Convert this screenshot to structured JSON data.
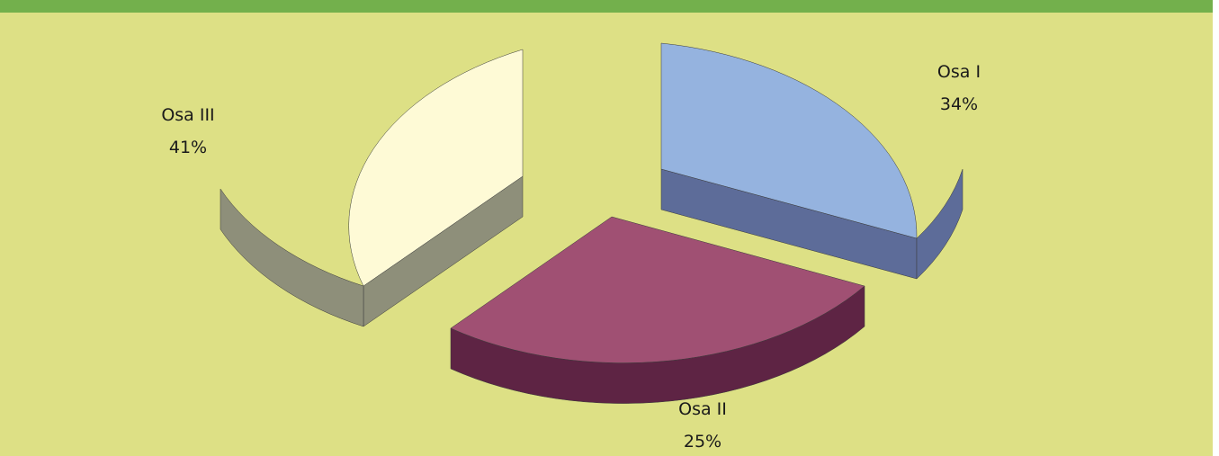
{
  "chart_data": {
    "type": "pie",
    "style": "3d-exploded",
    "categories": [
      "Osa I",
      "Osa II",
      "Osa III"
    ],
    "values": [
      34,
      25,
      41
    ],
    "value_labels": [
      "34%",
      "25%",
      "41%"
    ],
    "unit": "%",
    "legend": "none",
    "colors": {
      "Osa I": {
        "top": "#95b3df",
        "side": "#5d6c99"
      },
      "Osa II": {
        "top": "#a05073",
        "side": "#5e2444"
      },
      "Osa III": {
        "top": "#fefad6",
        "side": "#8e8f7a"
      }
    },
    "background": "#dde085",
    "header_color": "#73b04c"
  }
}
